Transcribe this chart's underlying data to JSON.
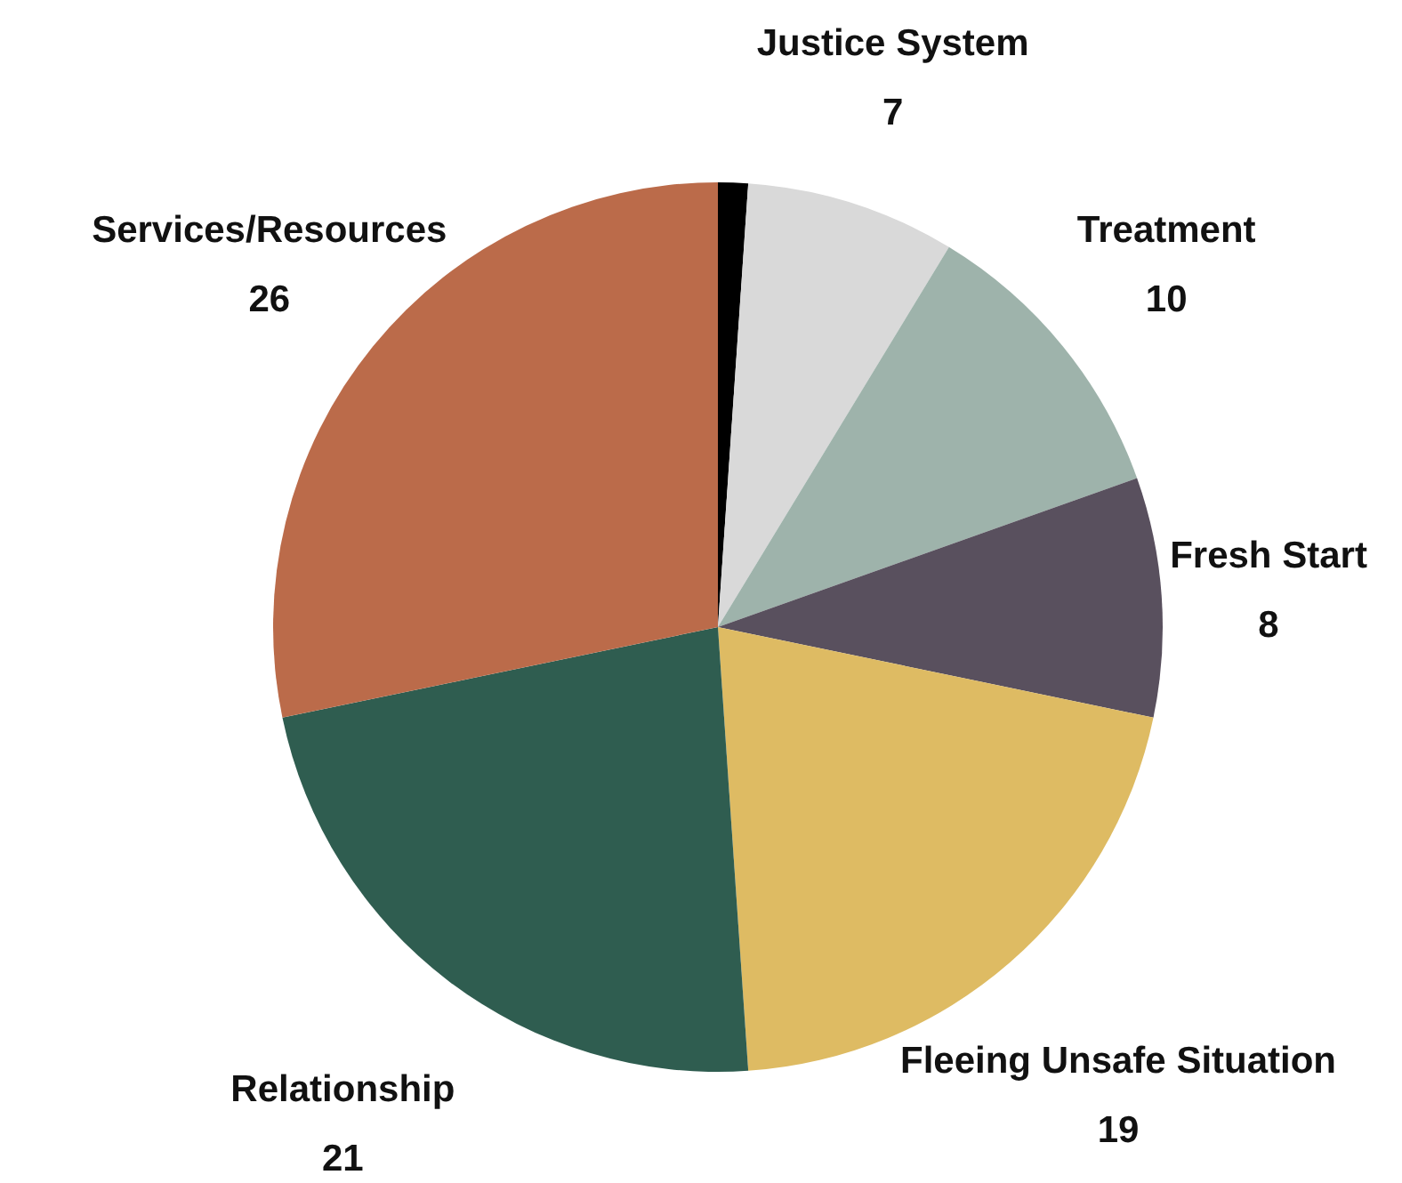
{
  "chart_data": {
    "type": "pie",
    "categories": [
      null,
      "Justice System",
      "Treatment",
      "Fresh Start",
      "Fleeing Unsafe Situation",
      "Relationship",
      "Services/Resources"
    ],
    "values": [
      1,
      7,
      10,
      8,
      19,
      21,
      26
    ],
    "colors": [
      "#000000",
      "#d9d9d9",
      "#9eb3ab",
      "#59505e",
      "#debb63",
      "#2f5d50",
      "#bb6b4a"
    ],
    "value_labels": [
      null,
      "7",
      "10",
      "8",
      "19",
      "21",
      "26"
    ]
  }
}
